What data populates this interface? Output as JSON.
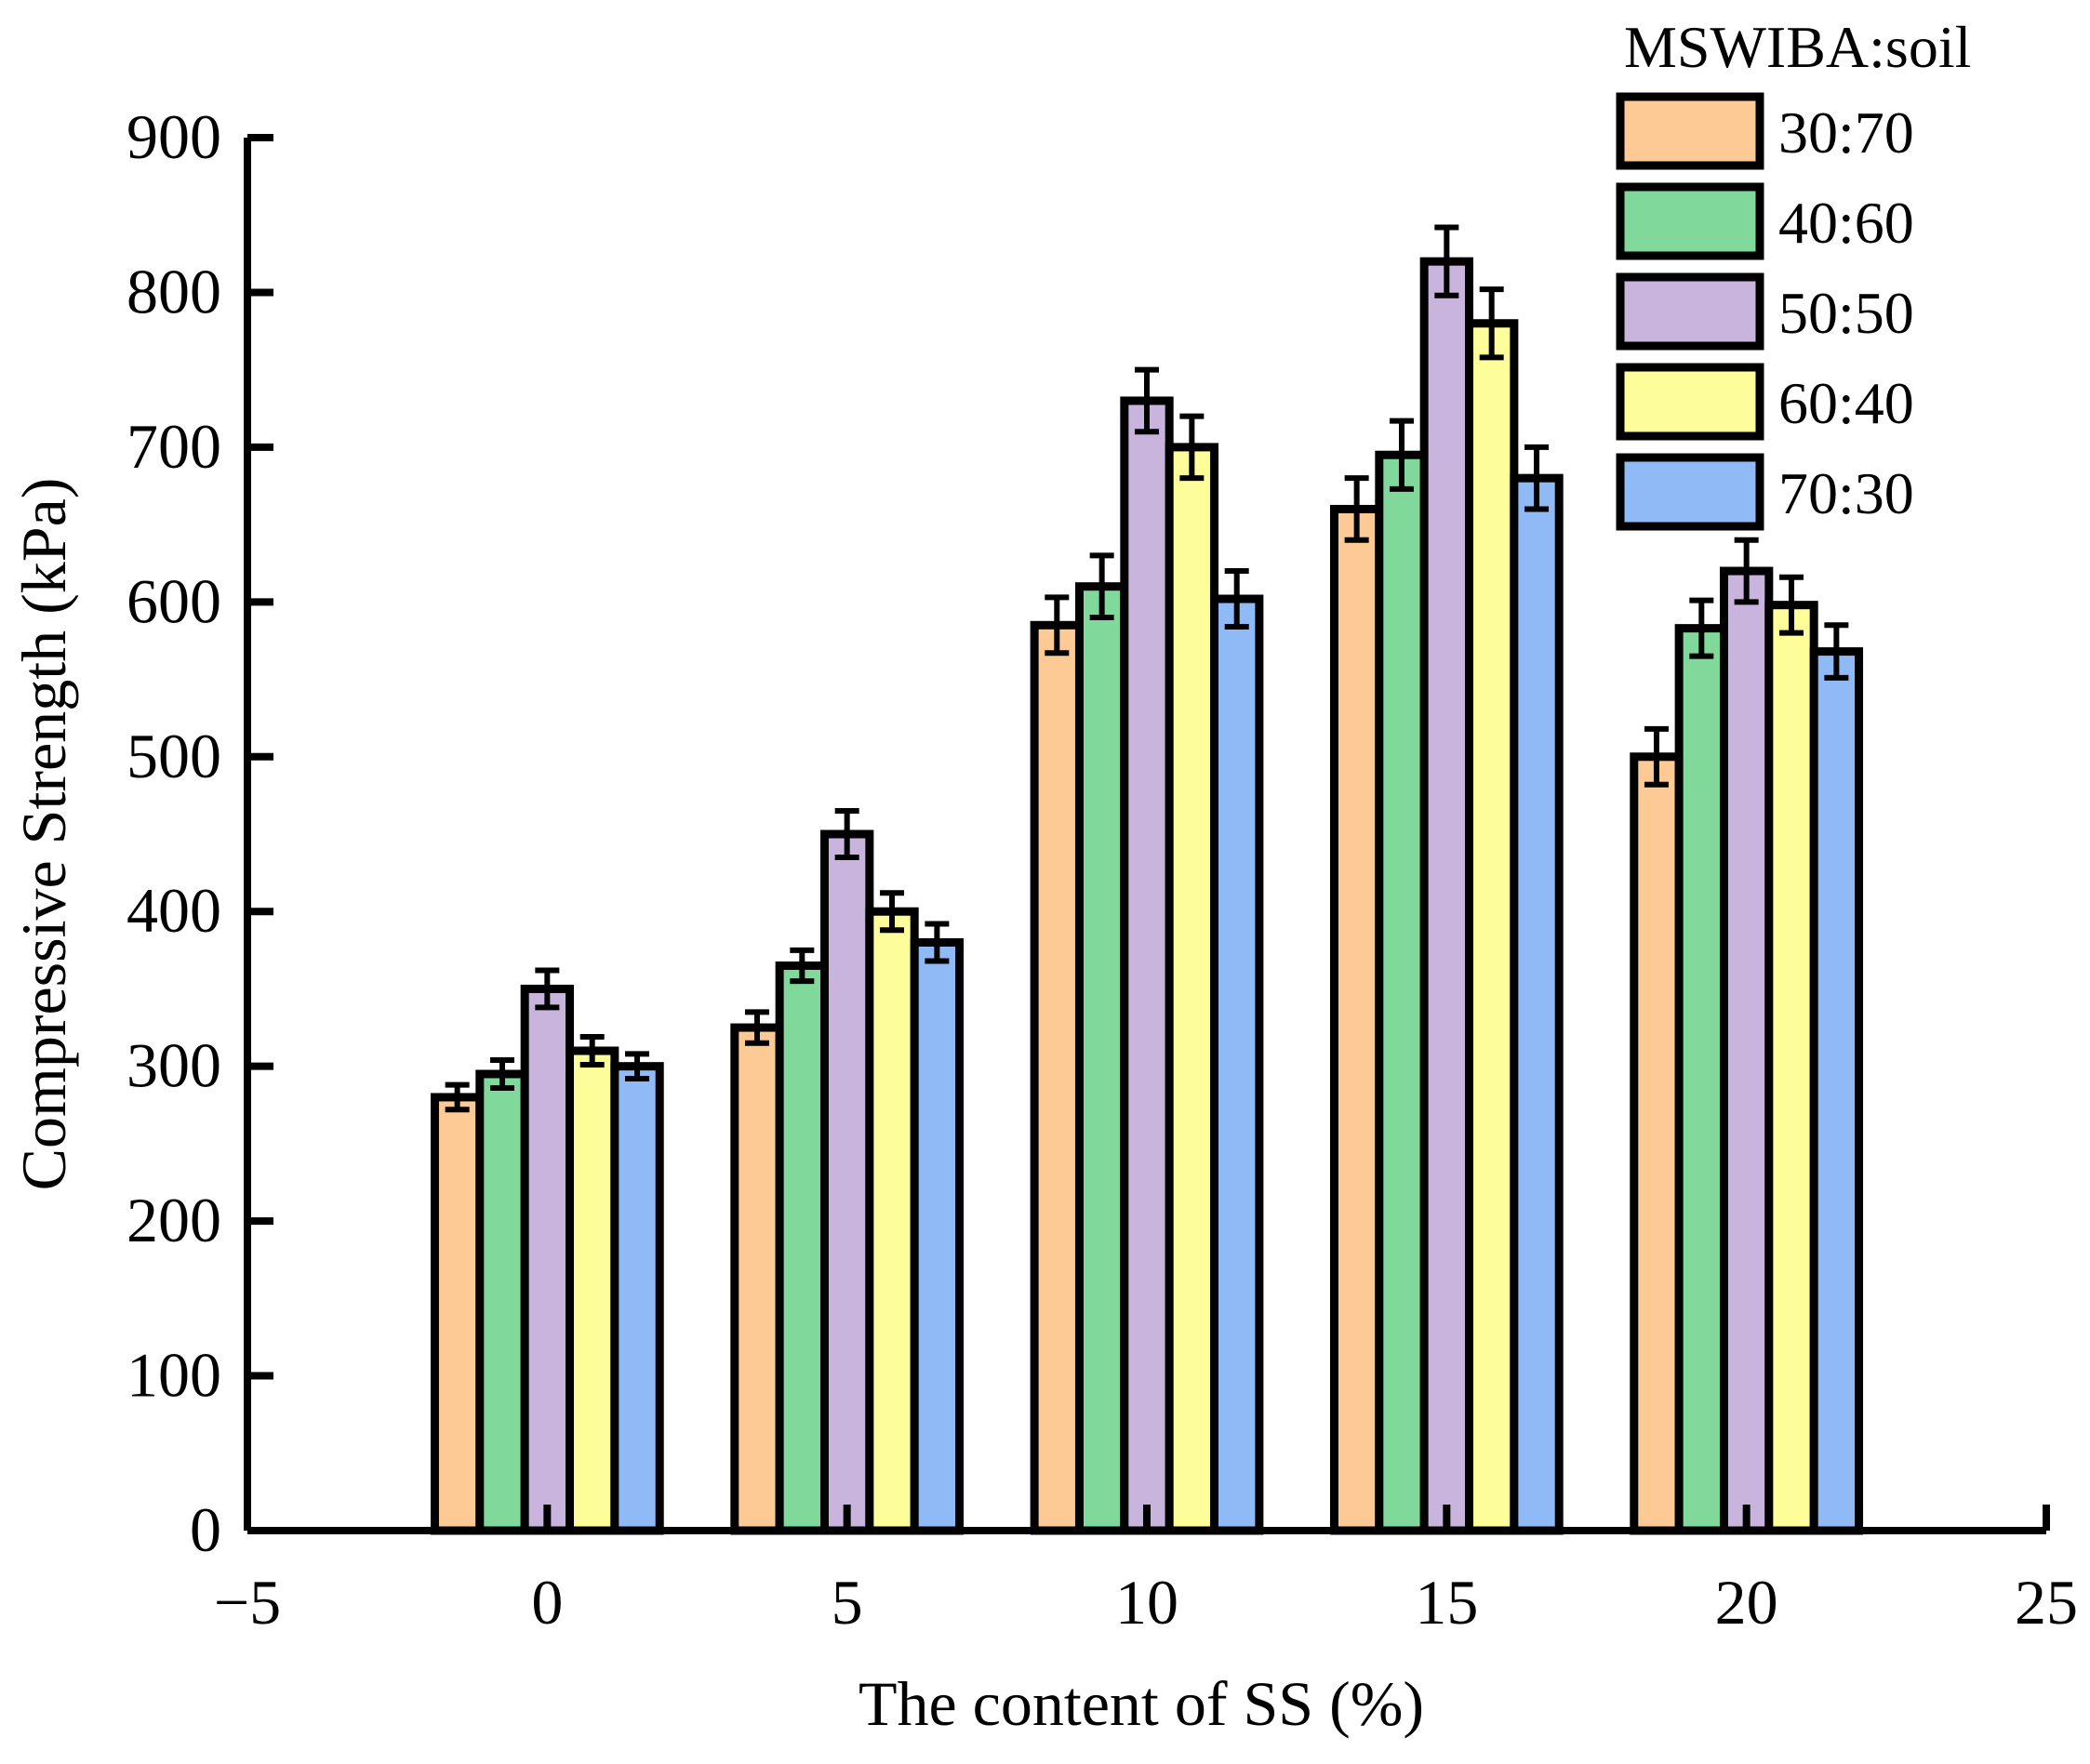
{
  "chart_data": {
    "type": "bar",
    "title": "",
    "xlabel": "The content of SS (%)",
    "ylabel": "Compressive Strength (kPa)",
    "xlim": [
      -5,
      25
    ],
    "ylim": [
      0,
      900
    ],
    "x_ticks": [
      -5,
      0,
      5,
      10,
      15,
      20,
      25
    ],
    "x_tick_labels": [
      "−5",
      "0",
      "5",
      "10",
      "15",
      "20",
      "25"
    ],
    "y_ticks": [
      0,
      100,
      200,
      300,
      400,
      500,
      600,
      700,
      800,
      900
    ],
    "y_tick_labels": [
      "0",
      "100",
      "200",
      "300",
      "400",
      "500",
      "600",
      "700",
      "800",
      "900"
    ],
    "x": [
      0,
      5,
      10,
      15,
      20
    ],
    "legend_title": "MSWIBA:soil",
    "legend_position": "top-right",
    "series": [
      {
        "name": "30:70",
        "color": "#fdc994",
        "values": [
          280,
          325,
          585,
          660,
          500
        ],
        "errors": [
          8,
          10,
          18,
          20,
          18
        ]
      },
      {
        "name": "40:60",
        "color": "#80d99b",
        "values": [
          295,
          365,
          610,
          695,
          583
        ],
        "errors": [
          9,
          10,
          20,
          22,
          18
        ]
      },
      {
        "name": "50:50",
        "color": "#c8b4dc",
        "values": [
          350,
          450,
          730,
          820,
          620
        ],
        "errors": [
          12,
          15,
          20,
          22,
          20
        ]
      },
      {
        "name": "60:40",
        "color": "#fdfd99",
        "values": [
          310,
          400,
          700,
          780,
          598
        ],
        "errors": [
          9,
          12,
          20,
          22,
          18
        ]
      },
      {
        "name": "70:30",
        "color": "#8fbaf5",
        "values": [
          300,
          380,
          602,
          680,
          568
        ],
        "errors": [
          8,
          12,
          18,
          20,
          17
        ]
      }
    ]
  }
}
